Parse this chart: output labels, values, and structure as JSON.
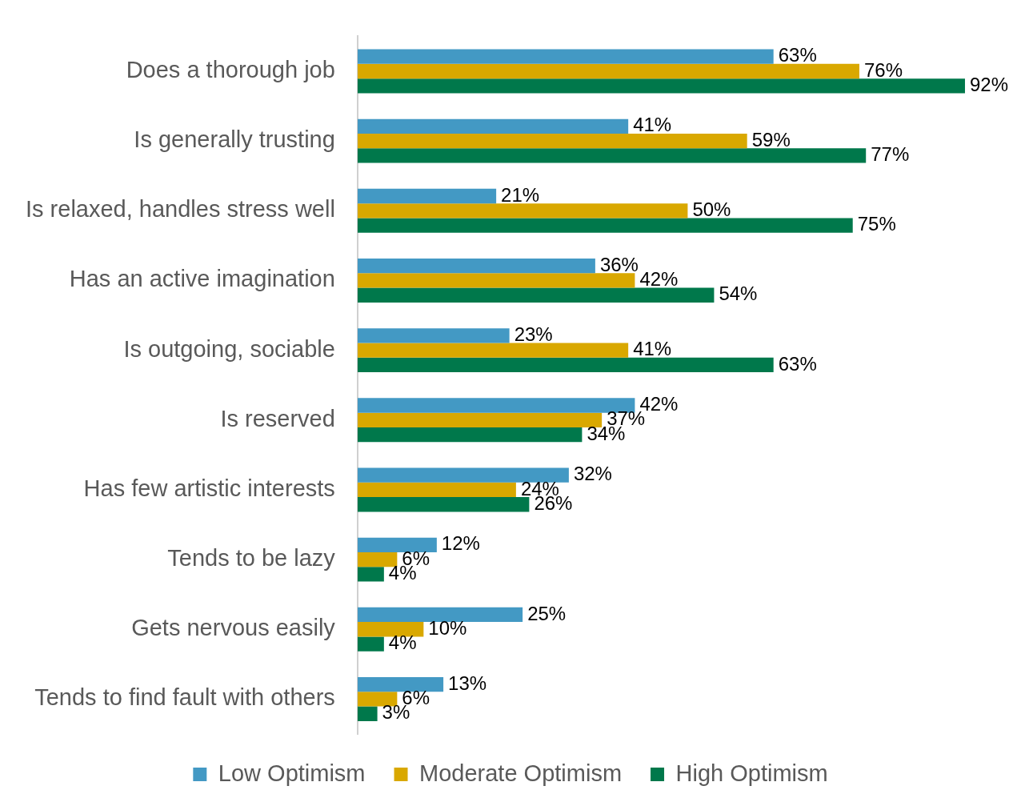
{
  "chart_data": {
    "type": "bar",
    "orientation": "horizontal",
    "categories": [
      "Does a thorough job",
      "Is generally trusting",
      "Is relaxed, handles stress well",
      "Has an active imagination",
      "Is outgoing, sociable",
      "Is reserved",
      "Has few artistic interests",
      "Tends to be lazy",
      "Gets nervous easily",
      "Tends to find fault with others"
    ],
    "series": [
      {
        "name": "Low Optimism",
        "color": "#4399c4",
        "values": [
          63,
          41,
          21,
          36,
          23,
          42,
          32,
          12,
          25,
          13
        ],
        "value_labels": [
          "63%",
          "41%",
          "21%",
          "36%",
          "23%",
          "42%",
          "32%",
          "12%",
          "25%",
          "13%"
        ]
      },
      {
        "name": "Moderate Optimism",
        "color": "#d9a800",
        "values": [
          76,
          59,
          50,
          42,
          41,
          37,
          24,
          6,
          10,
          6
        ],
        "value_labels": [
          "76%",
          "59%",
          "50%",
          "42%",
          "41%",
          "37%",
          "24%",
          "6%",
          "10%",
          "6%"
        ]
      },
      {
        "name": "High Optimism",
        "color": "#00784b",
        "values": [
          92,
          77,
          75,
          54,
          63,
          34,
          26,
          4,
          4,
          3
        ],
        "value_labels": [
          "92%",
          "77%",
          "75%",
          "54%",
          "63%",
          "34%",
          "26%",
          "4%",
          "4%",
          "3%"
        ]
      }
    ],
    "legend": "bottom",
    "grid": false,
    "tick_labels": "y"
  }
}
